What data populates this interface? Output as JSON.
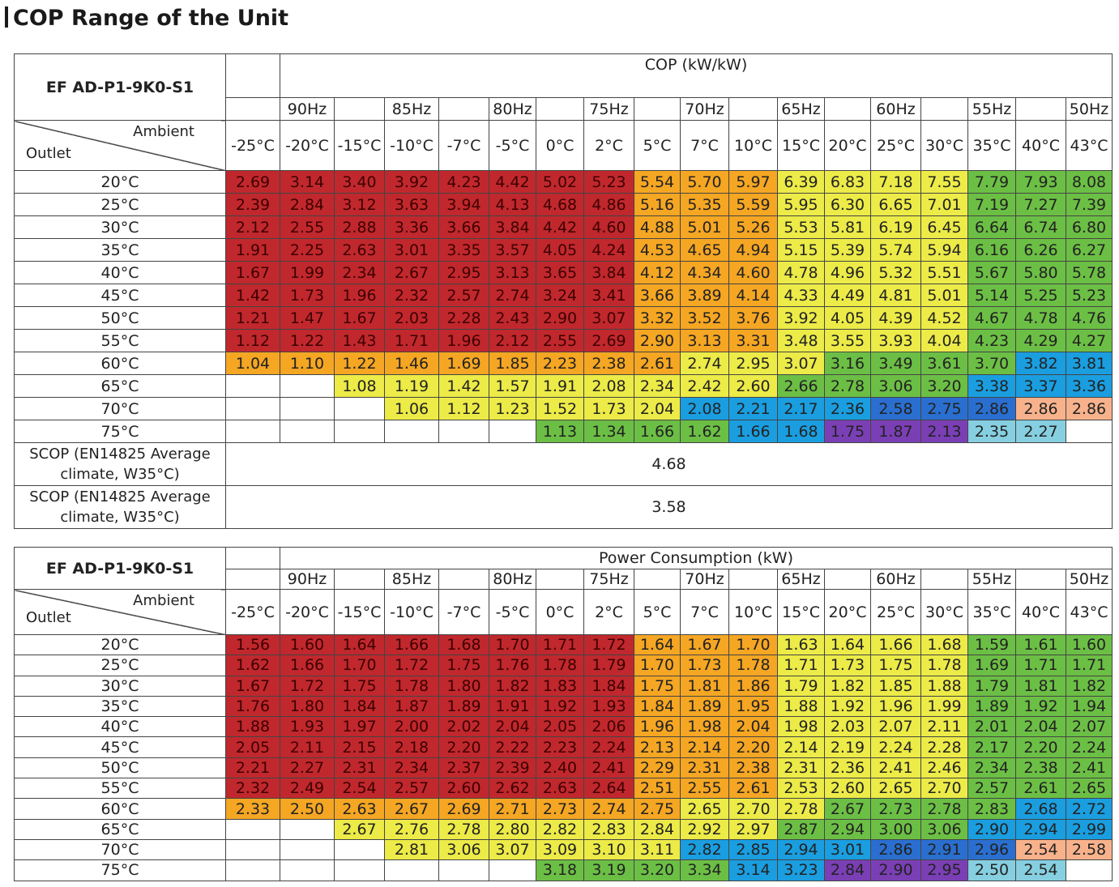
{
  "title": "COP Range of the Unit",
  "frequencies": [
    "90Hz",
    "85Hz",
    "80Hz",
    "75Hz",
    "70Hz",
    "65Hz",
    "60Hz",
    "55Hz",
    "50Hz"
  ],
  "ambient_temps": [
    "-25°C",
    "-20°C",
    "-15°C",
    "-10°C",
    "-7°C",
    "-5°C",
    "0°C",
    "2°C",
    "5°C",
    "7°C",
    "10°C",
    "15°C",
    "20°C",
    "25°C",
    "30°C",
    "35°C",
    "40°C",
    "43°C"
  ],
  "outlet_temps": [
    "20°C",
    "25°C",
    "30°C",
    "35°C",
    "40°C",
    "45°C",
    "50°C",
    "55°C",
    "60°C",
    "65°C",
    "70°C",
    "75°C"
  ],
  "colors": {
    "red": "#c0282d",
    "orange": "#f5a623",
    "yellow": "#eceb48",
    "green": "#6cbf45",
    "cyan": "#1a9ee0",
    "blue": "#2a6fcf",
    "purple": "#7b3fb5",
    "teal": "#86cfe0",
    "salmon": "#f7b28c"
  },
  "cop_table": {
    "model": "EF AD-P1-9K0-S1",
    "header": "COP (kW/kW)",
    "ambient_label": "Ambient",
    "outlet_label": "Outlet",
    "rows": [
      [
        "2.69",
        "3.14",
        "3.40",
        "3.92",
        "4.23",
        "4.42",
        "5.02",
        "5.23",
        "5.54",
        "5.70",
        "5.97",
        "6.39",
        "6.83",
        "7.18",
        "7.55",
        "7.79",
        "7.93",
        "8.08"
      ],
      [
        "2.39",
        "2.84",
        "3.12",
        "3.63",
        "3.94",
        "4.13",
        "4.68",
        "4.86",
        "5.16",
        "5.35",
        "5.59",
        "5.95",
        "6.30",
        "6.65",
        "7.01",
        "7.19",
        "7.27",
        "7.39"
      ],
      [
        "2.12",
        "2.55",
        "2.88",
        "3.36",
        "3.66",
        "3.84",
        "4.42",
        "4.60",
        "4.88",
        "5.01",
        "5.26",
        "5.53",
        "5.81",
        "6.19",
        "6.45",
        "6.64",
        "6.74",
        "6.80"
      ],
      [
        "1.91",
        "2.25",
        "2.63",
        "3.01",
        "3.35",
        "3.57",
        "4.05",
        "4.24",
        "4.53",
        "4.65",
        "4.94",
        "5.15",
        "5.39",
        "5.74",
        "5.94",
        "6.16",
        "6.26",
        "6.27"
      ],
      [
        "1.67",
        "1.99",
        "2.34",
        "2.67",
        "2.95",
        "3.13",
        "3.65",
        "3.84",
        "4.12",
        "4.34",
        "4.60",
        "4.78",
        "4.96",
        "5.32",
        "5.51",
        "5.67",
        "5.80",
        "5.78"
      ],
      [
        "1.42",
        "1.73",
        "1.96",
        "2.32",
        "2.57",
        "2.74",
        "3.24",
        "3.41",
        "3.66",
        "3.89",
        "4.14",
        "4.33",
        "4.49",
        "4.81",
        "5.01",
        "5.14",
        "5.25",
        "5.23"
      ],
      [
        "1.21",
        "1.47",
        "1.67",
        "2.03",
        "2.28",
        "2.43",
        "2.90",
        "3.07",
        "3.32",
        "3.52",
        "3.76",
        "3.92",
        "4.05",
        "4.39",
        "4.52",
        "4.67",
        "4.78",
        "4.76"
      ],
      [
        "1.12",
        "1.22",
        "1.43",
        "1.71",
        "1.96",
        "2.12",
        "2.55",
        "2.69",
        "2.90",
        "3.13",
        "3.31",
        "3.48",
        "3.55",
        "3.93",
        "4.04",
        "4.23",
        "4.29",
        "4.27"
      ],
      [
        "1.04",
        "1.10",
        "1.22",
        "1.46",
        "1.69",
        "1.85",
        "2.23",
        "2.38",
        "2.61",
        "2.74",
        "2.95",
        "3.07",
        "3.16",
        "3.49",
        "3.61",
        "3.70",
        "3.82",
        "3.81"
      ],
      [
        "",
        "",
        "1.08",
        "1.19",
        "1.42",
        "1.57",
        "1.91",
        "2.08",
        "2.34",
        "2.42",
        "2.60",
        "2.66",
        "2.78",
        "3.06",
        "3.20",
        "3.38",
        "3.37",
        "3.36"
      ],
      [
        "",
        "",
        "",
        "1.06",
        "1.12",
        "1.23",
        "1.52",
        "1.73",
        "2.04",
        "2.08",
        "2.21",
        "2.17",
        "2.36",
        "2.58",
        "2.75",
        "2.86",
        "2.86",
        "2.86"
      ],
      [
        "",
        "",
        "",
        "",
        "",
        "",
        "1.13",
        "1.34",
        "1.66",
        "1.62",
        "1.66",
        "1.68",
        "1.75",
        "1.87",
        "2.13",
        "2.35",
        "2.27",
        ""
      ]
    ],
    "row_colors": [
      [
        "red",
        "red",
        "red",
        "red",
        "red",
        "red",
        "red",
        "red",
        "orange",
        "orange",
        "orange",
        "yellow",
        "yellow",
        "yellow",
        "yellow",
        "green",
        "green",
        "green"
      ],
      [
        "red",
        "red",
        "red",
        "red",
        "red",
        "red",
        "red",
        "red",
        "orange",
        "orange",
        "orange",
        "yellow",
        "yellow",
        "yellow",
        "yellow",
        "green",
        "green",
        "green"
      ],
      [
        "red",
        "red",
        "red",
        "red",
        "red",
        "red",
        "red",
        "red",
        "orange",
        "orange",
        "orange",
        "yellow",
        "yellow",
        "yellow",
        "yellow",
        "green",
        "green",
        "green"
      ],
      [
        "red",
        "red",
        "red",
        "red",
        "red",
        "red",
        "red",
        "red",
        "orange",
        "orange",
        "orange",
        "yellow",
        "yellow",
        "yellow",
        "yellow",
        "green",
        "green",
        "green"
      ],
      [
        "red",
        "red",
        "red",
        "red",
        "red",
        "red",
        "red",
        "red",
        "orange",
        "orange",
        "orange",
        "yellow",
        "yellow",
        "yellow",
        "yellow",
        "green",
        "green",
        "green"
      ],
      [
        "red",
        "red",
        "red",
        "red",
        "red",
        "red",
        "red",
        "red",
        "orange",
        "orange",
        "orange",
        "yellow",
        "yellow",
        "yellow",
        "yellow",
        "green",
        "green",
        "green"
      ],
      [
        "red",
        "red",
        "red",
        "red",
        "red",
        "red",
        "red",
        "red",
        "orange",
        "orange",
        "orange",
        "yellow",
        "yellow",
        "yellow",
        "yellow",
        "green",
        "green",
        "green"
      ],
      [
        "red",
        "red",
        "red",
        "red",
        "red",
        "red",
        "red",
        "red",
        "orange",
        "orange",
        "orange",
        "yellow",
        "yellow",
        "yellow",
        "yellow",
        "green",
        "green",
        "green"
      ],
      [
        "orange",
        "orange",
        "orange",
        "orange",
        "orange",
        "orange",
        "orange",
        "orange",
        "orange",
        "yellow",
        "yellow",
        "yellow",
        "green",
        "green",
        "green",
        "green",
        "cyan",
        "cyan"
      ],
      [
        "blank",
        "blank",
        "yellow",
        "yellow",
        "yellow",
        "yellow",
        "yellow",
        "yellow",
        "yellow",
        "yellow",
        "yellow",
        "green",
        "green",
        "green",
        "green",
        "cyan",
        "cyan",
        "cyan"
      ],
      [
        "blank",
        "blank",
        "blank",
        "yellow",
        "yellow",
        "yellow",
        "yellow",
        "yellow",
        "yellow",
        "cyan",
        "cyan",
        "cyan",
        "cyan",
        "blue",
        "blue",
        "blue",
        "salmon",
        "salmon"
      ],
      [
        "blank",
        "blank",
        "blank",
        "blank",
        "blank",
        "blank",
        "green",
        "green",
        "green",
        "green",
        "cyan",
        "cyan",
        "purple",
        "purple",
        "purple",
        "teal",
        "teal",
        "blank"
      ]
    ],
    "summary": [
      {
        "label": "SCOP (EN14825 Average climate, W35°C)",
        "value": "4.68"
      },
      {
        "label": "SCOP (EN14825 Average climate, W35°C)",
        "value": "3.58"
      }
    ]
  },
  "power_table": {
    "model": "EF AD-P1-9K0-S1",
    "header": "Power Consumption (kW)",
    "ambient_label": "Ambient",
    "outlet_label": "Outlet",
    "rows": [
      [
        "1.56",
        "1.60",
        "1.64",
        "1.66",
        "1.68",
        "1.70",
        "1.71",
        "1.72",
        "1.64",
        "1.67",
        "1.70",
        "1.63",
        "1.64",
        "1.66",
        "1.68",
        "1.59",
        "1.61",
        "1.60"
      ],
      [
        "1.62",
        "1.66",
        "1.70",
        "1.72",
        "1.75",
        "1.76",
        "1.78",
        "1.79",
        "1.70",
        "1.73",
        "1.78",
        "1.71",
        "1.73",
        "1.75",
        "1.78",
        "1.69",
        "1.71",
        "1.71"
      ],
      [
        "1.67",
        "1.72",
        "1.75",
        "1.78",
        "1.80",
        "1.82",
        "1.83",
        "1.84",
        "1.75",
        "1.81",
        "1.86",
        "1.79",
        "1.82",
        "1.85",
        "1.88",
        "1.79",
        "1.81",
        "1.82"
      ],
      [
        "1.76",
        "1.80",
        "1.84",
        "1.87",
        "1.89",
        "1.91",
        "1.92",
        "1.93",
        "1.84",
        "1.89",
        "1.95",
        "1.88",
        "1.92",
        "1.96",
        "1.99",
        "1.89",
        "1.92",
        "1.94"
      ],
      [
        "1.88",
        "1.93",
        "1.97",
        "2.00",
        "2.02",
        "2.04",
        "2.05",
        "2.06",
        "1.96",
        "1.98",
        "2.04",
        "1.98",
        "2.03",
        "2.07",
        "2.11",
        "2.01",
        "2.04",
        "2.07"
      ],
      [
        "2.05",
        "2.11",
        "2.15",
        "2.18",
        "2.20",
        "2.22",
        "2.23",
        "2.24",
        "2.13",
        "2.14",
        "2.20",
        "2.14",
        "2.19",
        "2.24",
        "2.28",
        "2.17",
        "2.20",
        "2.24"
      ],
      [
        "2.21",
        "2.27",
        "2.31",
        "2.34",
        "2.37",
        "2.39",
        "2.40",
        "2.41",
        "2.29",
        "2.31",
        "2.38",
        "2.31",
        "2.36",
        "2.41",
        "2.46",
        "2.34",
        "2.38",
        "2.41"
      ],
      [
        "2.32",
        "2.49",
        "2.54",
        "2.57",
        "2.60",
        "2.62",
        "2.63",
        "2.64",
        "2.51",
        "2.55",
        "2.61",
        "2.53",
        "2.60",
        "2.65",
        "2.70",
        "2.57",
        "2.61",
        "2.65"
      ],
      [
        "2.33",
        "2.50",
        "2.63",
        "2.67",
        "2.69",
        "2.71",
        "2.73",
        "2.74",
        "2.75",
        "2.65",
        "2.70",
        "2.78",
        "2.67",
        "2.73",
        "2.78",
        "2.83",
        "2.68",
        "2.72"
      ],
      [
        "",
        "",
        "2.67",
        "2.76",
        "2.78",
        "2.80",
        "2.82",
        "2.83",
        "2.84",
        "2.92",
        "2.97",
        "2.87",
        "2.94",
        "3.00",
        "3.06",
        "2.90",
        "2.94",
        "2.99"
      ],
      [
        "",
        "",
        "",
        "2.81",
        "3.06",
        "3.07",
        "3.09",
        "3.10",
        "3.11",
        "2.82",
        "2.85",
        "2.94",
        "3.01",
        "2.86",
        "2.91",
        "2.96",
        "2.54",
        "2.58"
      ],
      [
        "",
        "",
        "",
        "",
        "",
        "",
        "3.18",
        "3.19",
        "3.20",
        "3.34",
        "3.14",
        "3.23",
        "2.84",
        "2.90",
        "2.95",
        "2.50",
        "2.54",
        ""
      ]
    ],
    "row_colors": [
      [
        "red",
        "red",
        "red",
        "red",
        "red",
        "red",
        "red",
        "red",
        "orange",
        "orange",
        "orange",
        "yellow",
        "yellow",
        "yellow",
        "yellow",
        "green",
        "green",
        "green"
      ],
      [
        "red",
        "red",
        "red",
        "red",
        "red",
        "red",
        "red",
        "red",
        "orange",
        "orange",
        "orange",
        "yellow",
        "yellow",
        "yellow",
        "yellow",
        "green",
        "green",
        "green"
      ],
      [
        "red",
        "red",
        "red",
        "red",
        "red",
        "red",
        "red",
        "red",
        "orange",
        "orange",
        "orange",
        "yellow",
        "yellow",
        "yellow",
        "yellow",
        "green",
        "green",
        "green"
      ],
      [
        "red",
        "red",
        "red",
        "red",
        "red",
        "red",
        "red",
        "red",
        "orange",
        "orange",
        "orange",
        "yellow",
        "yellow",
        "yellow",
        "yellow",
        "green",
        "green",
        "green"
      ],
      [
        "red",
        "red",
        "red",
        "red",
        "red",
        "red",
        "red",
        "red",
        "orange",
        "orange",
        "orange",
        "yellow",
        "yellow",
        "yellow",
        "yellow",
        "green",
        "green",
        "green"
      ],
      [
        "red",
        "red",
        "red",
        "red",
        "red",
        "red",
        "red",
        "red",
        "orange",
        "orange",
        "orange",
        "yellow",
        "yellow",
        "yellow",
        "yellow",
        "green",
        "green",
        "green"
      ],
      [
        "red",
        "red",
        "red",
        "red",
        "red",
        "red",
        "red",
        "red",
        "orange",
        "orange",
        "orange",
        "yellow",
        "yellow",
        "yellow",
        "yellow",
        "green",
        "green",
        "green"
      ],
      [
        "red",
        "red",
        "red",
        "red",
        "red",
        "red",
        "red",
        "red",
        "orange",
        "orange",
        "orange",
        "yellow",
        "yellow",
        "yellow",
        "yellow",
        "green",
        "green",
        "green"
      ],
      [
        "orange",
        "orange",
        "orange",
        "orange",
        "orange",
        "orange",
        "orange",
        "orange",
        "orange",
        "yellow",
        "yellow",
        "yellow",
        "green",
        "green",
        "green",
        "green",
        "cyan",
        "cyan"
      ],
      [
        "blank",
        "blank",
        "yellow",
        "yellow",
        "yellow",
        "yellow",
        "yellow",
        "yellow",
        "yellow",
        "yellow",
        "yellow",
        "green",
        "green",
        "green",
        "green",
        "cyan",
        "cyan",
        "cyan"
      ],
      [
        "blank",
        "blank",
        "blank",
        "yellow",
        "yellow",
        "yellow",
        "yellow",
        "yellow",
        "yellow",
        "cyan",
        "cyan",
        "cyan",
        "cyan",
        "blue",
        "blue",
        "blue",
        "salmon",
        "salmon"
      ],
      [
        "blank",
        "blank",
        "blank",
        "blank",
        "blank",
        "blank",
        "green",
        "green",
        "green",
        "green",
        "cyan",
        "cyan",
        "purple",
        "purple",
        "purple",
        "teal",
        "teal",
        "blank"
      ]
    ]
  }
}
